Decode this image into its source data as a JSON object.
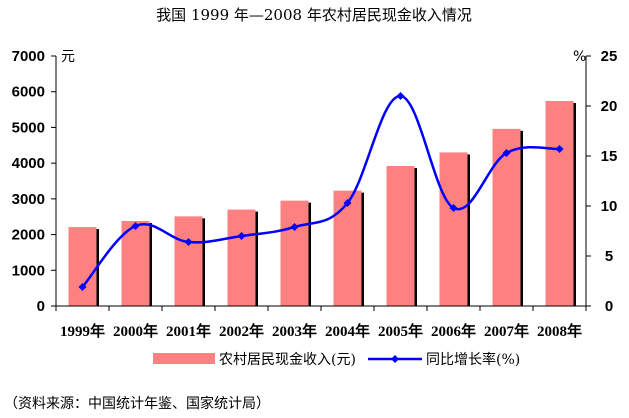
{
  "chart_data": {
    "type": "bar+line",
    "title": "我国 1999 年—2008 年农村居民现金收入情况",
    "categories": [
      "1999年",
      "2000年",
      "2001年",
      "2002年",
      "2003年",
      "2004年",
      "2005年",
      "2006年",
      "2007年",
      "2008年"
    ],
    "series": [
      {
        "name": "农村居民现金收入(元)",
        "type": "bar",
        "axis": "left",
        "color": "#ff8080",
        "shadow_color": "#000000",
        "values": [
          2210,
          2380,
          2510,
          2700,
          2950,
          3230,
          3920,
          4300,
          4960,
          5740
        ]
      },
      {
        "name": "同比增长率(%)",
        "type": "line",
        "axis": "right",
        "color": "#0000ff",
        "values": [
          1.9,
          8.0,
          6.4,
          7.0,
          7.9,
          10.3,
          21.0,
          9.8,
          15.3,
          15.7
        ]
      }
    ],
    "y_left": {
      "unit": "元",
      "lim": [
        0,
        7000
      ],
      "ticks": [
        0,
        1000,
        2000,
        3000,
        4000,
        5000,
        6000,
        7000
      ]
    },
    "y_right": {
      "unit": "%",
      "lim": [
        0,
        25
      ],
      "ticks": [
        0,
        5,
        10,
        15,
        20,
        25
      ]
    },
    "legend_position": "bottom",
    "grid": false
  },
  "source": "（资料来源：中国统计年鉴、国家统计局）"
}
